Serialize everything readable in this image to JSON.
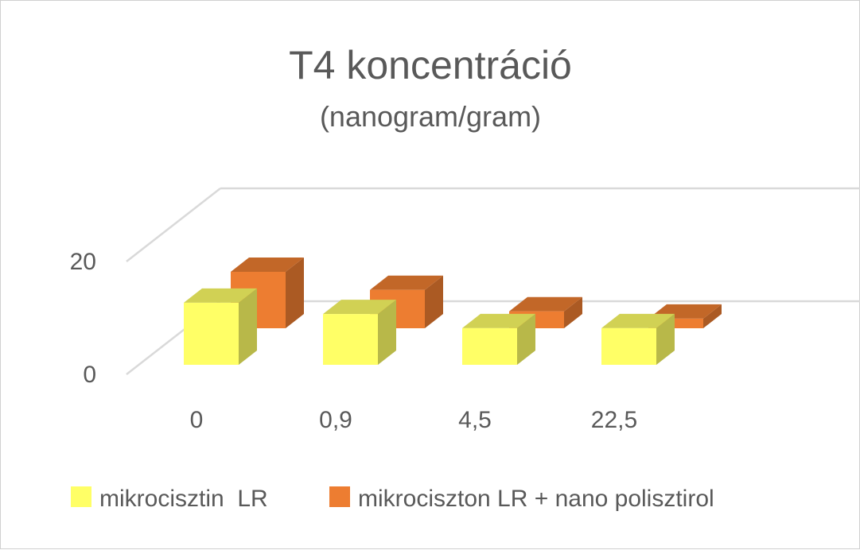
{
  "chart_data": {
    "type": "bar",
    "title": "T4 koncentráció",
    "subtitle": "(nanogram/gram)",
    "categories": [
      "0",
      "0,9",
      "4,5",
      "22,5"
    ],
    "series": [
      {
        "name": "mikrocisztin  LR",
        "values": [
          11,
          9,
          6.5,
          6.5
        ],
        "color": "#FFFF66"
      },
      {
        "name": "mikrociszton LR + nano polisztirol",
        "values": [
          10,
          6.8,
          3,
          1.7
        ],
        "color": "#ED7D31"
      }
    ],
    "y_ticks": [
      "0",
      "20"
    ],
    "ylim": [
      0,
      20
    ],
    "grid": true,
    "legend_position": "bottom",
    "view": "3d"
  }
}
